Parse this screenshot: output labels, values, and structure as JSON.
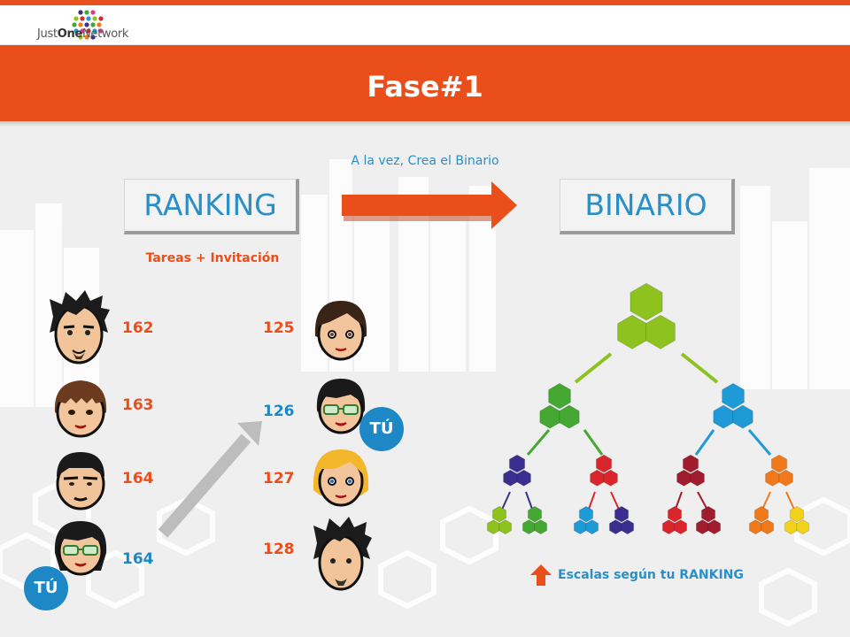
{
  "header": {
    "brand_prefix": "Just",
    "brand_middle": "One",
    "brand_suffix": "Network",
    "title": "Fase#1"
  },
  "subtitle": "A la vez, Crea el Binario",
  "boxes": {
    "ranking": "RANKING",
    "binario": "BINARIO"
  },
  "ranking_caption": "Tareas + Invitación",
  "left_column": [
    {
      "value": "162"
    },
    {
      "value": "163"
    },
    {
      "value": "164"
    },
    {
      "value": "164"
    }
  ],
  "right_column": [
    {
      "value": "125"
    },
    {
      "value": "126"
    },
    {
      "value": "127"
    },
    {
      "value": "128"
    }
  ],
  "badge_label": "TÚ",
  "binary_caption": "Escalas según tu RANKING",
  "colors": {
    "accent_orange": "#e94e1b",
    "accent_blue": "#1e88c7",
    "level1": "#8dc21f",
    "level2_left": "#44a832",
    "level2_right": "#1e9ad6",
    "level3": [
      "#3a2f8f",
      "#d9262c",
      "#a01d2e",
      "#f07a1b"
    ]
  },
  "icons": {
    "logo": "network-dots-logo",
    "arrow_right": "arrow-right-icon",
    "arrow_diag": "arrow-up-right-icon",
    "arrow_up": "arrow-up-icon",
    "person": "person-group-icon"
  }
}
